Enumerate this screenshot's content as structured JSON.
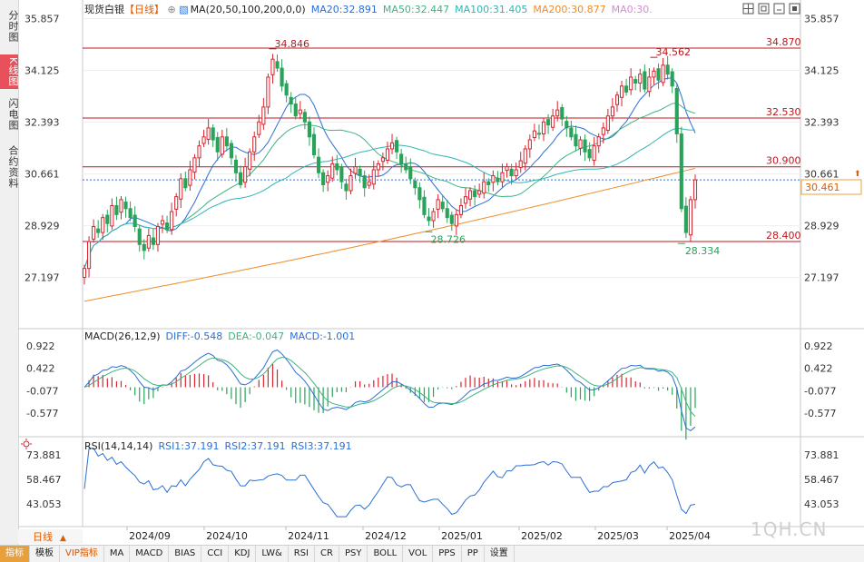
{
  "nav_tabs": [
    {
      "label": "分时图",
      "active": false
    },
    {
      "label": "K线图",
      "active": true
    },
    {
      "label": "闪电图",
      "active": false
    },
    {
      "label": "合约资料",
      "active": false
    }
  ],
  "header": {
    "instrument": "现货白银",
    "period": "【日线】",
    "ma_label": "MA(20,50,100,200,0,0)",
    "ma_values": [
      {
        "label": "MA20:32.891",
        "color": "#2b6fd6"
      },
      {
        "label": "MA50:32.447",
        "color": "#3fb37f"
      },
      {
        "label": "MA100:31.405",
        "color": "#2fb5b5"
      },
      {
        "label": "MA200:30.877",
        "color": "#f08c28"
      },
      {
        "label": "MA0:30.",
        "color": "#d98ad8"
      }
    ]
  },
  "window_icons": [
    "grid-icon",
    "restore-icon",
    "minimize-icon",
    "maximize-icon"
  ],
  "price_axis_ticks": [
    "35.857",
    "34.125",
    "32.393",
    "30.661",
    "28.929",
    "27.197"
  ],
  "current_price": "30.461",
  "macd_panel": {
    "title": "MACD(26,12,9)",
    "diff": "DIFF:-0.548",
    "dea": "DEA:-0.047",
    "macd": "MACD:-1.001",
    "ticks": [
      "0.922",
      "0.422",
      "-0.077",
      "-0.577"
    ]
  },
  "rsi_panel": {
    "title": "RSI(14,14,14)",
    "rsi1": "RSI1:37.191",
    "rsi2": "RSI2:37.191",
    "rsi3": "RSI3:37.191",
    "ticks": [
      "73.881",
      "58.467",
      "43.053"
    ]
  },
  "x_axis_labels": [
    "2024/09",
    "2024/10",
    "2024/11",
    "2024/12",
    "2025/01",
    "2025/02",
    "2025/03",
    "2025/04"
  ],
  "period_selector": "日线",
  "watermark": "1QH.CN",
  "bottom_tabs": [
    "指标",
    "模板",
    "VIP指标",
    "MA",
    "MACD",
    "BIAS",
    "CCI",
    "KDJ",
    "LW&",
    "RSI",
    "CR",
    "PSY",
    "BOLL",
    "VOL",
    "PPS",
    "PP",
    "设置"
  ],
  "chart_data": {
    "type": "candlestick",
    "horizontal_levels": [
      {
        "value": 34.87,
        "label": "34.870"
      },
      {
        "value": 32.53,
        "label": "32.530"
      },
      {
        "value": 30.9,
        "label": "30.900"
      },
      {
        "value": 28.4,
        "label": "28.400"
      }
    ],
    "annotations": [
      {
        "label": "34.846",
        "value": 34.846,
        "date": "2024/10 (late)",
        "kind": "high"
      },
      {
        "label": "34.562",
        "value": 34.562,
        "date": "2025/03 (late)",
        "kind": "high"
      },
      {
        "label": "28.726",
        "value": 28.726,
        "date": "2024/12 (late)",
        "kind": "low"
      },
      {
        "label": "28.334",
        "value": 28.334,
        "date": "2025/04 (early)",
        "kind": "low"
      }
    ],
    "price_range": [
      26.2,
      36.3
    ],
    "close_series": [
      27.5,
      28.4,
      28.9,
      28.7,
      29.2,
      29.0,
      29.6,
      29.3,
      29.8,
      29.5,
      29.2,
      28.9,
      28.3,
      28.1,
      28.6,
      28.3,
      28.9,
      29.1,
      28.8,
      29.4,
      29.9,
      30.5,
      30.2,
      30.8,
      31.2,
      31.6,
      31.9,
      32.2,
      31.8,
      31.4,
      31.9,
      31.6,
      31.2,
      30.7,
      30.3,
      30.9,
      31.4,
      31.9,
      32.4,
      32.9,
      33.9,
      34.5,
      34.2,
      33.6,
      33.3,
      33.0,
      32.6,
      32.8,
      32.4,
      31.9,
      31.3,
      30.7,
      30.3,
      30.6,
      31.0,
      30.8,
      30.4,
      30.1,
      30.6,
      30.9,
      30.6,
      30.2,
      30.4,
      30.8,
      31.0,
      31.2,
      31.5,
      31.7,
      31.4,
      31.0,
      30.8,
      30.5,
      30.2,
      29.8,
      29.3,
      29.1,
      29.4,
      29.8,
      29.5,
      29.2,
      29.0,
      29.3,
      29.6,
      29.9,
      30.1,
      29.9,
      30.1,
      30.4,
      30.3,
      30.6,
      30.4,
      30.7,
      30.9,
      30.6,
      30.8,
      31.1,
      31.5,
      31.8,
      32.1,
      32.0,
      32.4,
      32.3,
      32.6,
      32.8,
      32.5,
      32.2,
      31.9,
      31.6,
      31.8,
      31.4,
      31.2,
      31.6,
      31.9,
      32.2,
      32.6,
      32.9,
      33.3,
      33.6,
      33.4,
      33.9,
      33.7,
      34.0,
      33.5,
      33.9,
      34.1,
      33.8,
      34.3,
      34.0,
      33.6,
      32.0,
      29.5,
      28.7,
      29.8,
      30.46
    ],
    "macd_range": [
      -1.05,
      1.0
    ],
    "rsi_range": [
      33,
      80
    ]
  }
}
